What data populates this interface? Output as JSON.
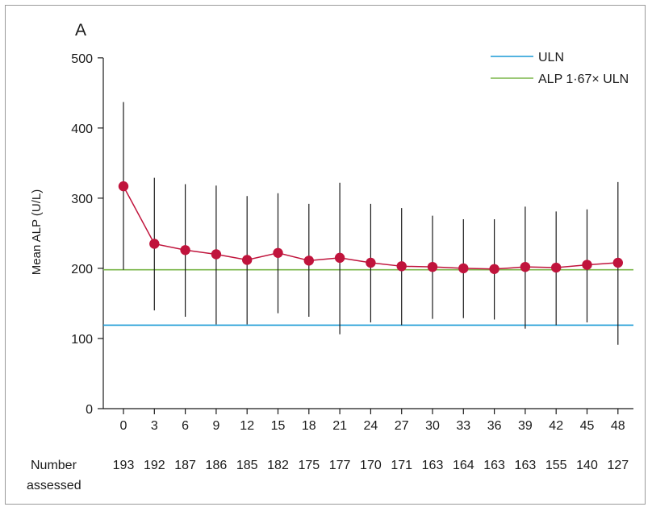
{
  "chart_data": {
    "type": "line",
    "panel_label": "A",
    "ylabel": "Mean ALP (U/L)",
    "xlabel": "",
    "ylim": [
      0,
      500
    ],
    "yticks": [
      0,
      100,
      200,
      300,
      400,
      500
    ],
    "x": [
      0,
      3,
      6,
      9,
      12,
      15,
      18,
      21,
      24,
      27,
      30,
      33,
      36,
      39,
      42,
      45,
      48
    ],
    "series": [
      {
        "name": "",
        "color": "#c0143c",
        "values": [
          317,
          235,
          226,
          220,
          212,
          222,
          211,
          215,
          208,
          203,
          202,
          200,
          199,
          202,
          201,
          205,
          208
        ],
        "err_low": [
          198,
          140,
          131,
          120,
          120,
          136,
          131,
          106,
          123,
          119,
          128,
          129,
          127,
          114,
          119,
          123,
          91
        ],
        "err_high": [
          437,
          329,
          320,
          318,
          303,
          307,
          292,
          322,
          292,
          286,
          275,
          270,
          270,
          288,
          281,
          284,
          323
        ]
      }
    ],
    "reference_lines": [
      {
        "name": "ULN",
        "value": 119,
        "color": "#1a9ad6"
      },
      {
        "name": "ALP 1·67× ULN",
        "value": 198,
        "color": "#7ab648"
      }
    ],
    "legend_position": "top-right",
    "grid": false,
    "number_assessed_label_line1": "Number",
    "number_assessed_label_line2": "assessed",
    "number_assessed": [
      193,
      192,
      187,
      186,
      185,
      182,
      175,
      177,
      170,
      171,
      163,
      164,
      163,
      163,
      155,
      140,
      127
    ]
  }
}
